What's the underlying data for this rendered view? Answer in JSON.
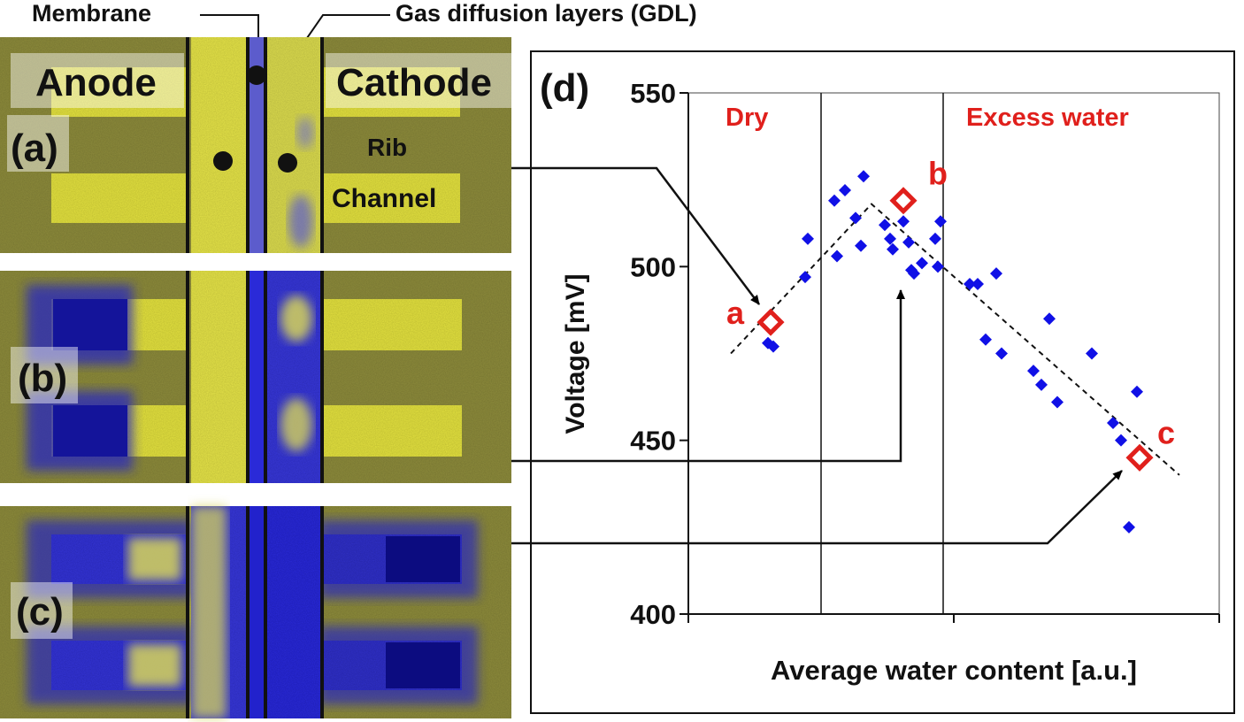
{
  "figure": {
    "top_labels": {
      "membrane": "Membrane",
      "gdl": "Gas diffusion layers (GDL)"
    },
    "panel_a": {
      "tag": "(a)",
      "anode": "Anode",
      "cathode": "Cathode",
      "rib": "Rib",
      "channel": "Channel"
    },
    "panel_b": {
      "tag": "(b)"
    },
    "panel_c": {
      "tag": "(c)"
    },
    "panel_d": {
      "tag": "(d)",
      "region_dry": "Dry",
      "region_excess": "Excess water",
      "point_a": "a",
      "point_b": "b",
      "point_c": "c"
    },
    "colors": {
      "water_blue": "#2a2ad8",
      "dry_yellow": "#e8e840",
      "background_olive": "#8c8c3a",
      "highlight_red": "#e0201c",
      "scatter_blue": "#1010e6"
    }
  },
  "chart_data": {
    "type": "scatter",
    "title": "",
    "xlabel": "Average water content [a.u.]",
    "ylabel": "Voltage [mV]",
    "ylim": [
      400,
      550
    ],
    "yticks": [
      400,
      450,
      500,
      550
    ],
    "xlim": [
      0,
      20
    ],
    "x_ticklabels_shown": false,
    "grid": false,
    "region_boundaries_x": [
      5,
      9.6
    ],
    "series": [
      {
        "points": [
          {
            "x": 3.0,
            "y": 478
          },
          {
            "x": 3.2,
            "y": 477
          },
          {
            "x": 4.4,
            "y": 497
          },
          {
            "x": 4.5,
            "y": 508
          },
          {
            "x": 5.5,
            "y": 519
          },
          {
            "x": 5.6,
            "y": 503
          },
          {
            "x": 5.9,
            "y": 522
          },
          {
            "x": 6.3,
            "y": 514
          },
          {
            "x": 6.5,
            "y": 506
          },
          {
            "x": 6.6,
            "y": 526
          },
          {
            "x": 7.4,
            "y": 512
          },
          {
            "x": 7.6,
            "y": 508
          },
          {
            "x": 7.7,
            "y": 505
          },
          {
            "x": 8.1,
            "y": 513
          },
          {
            "x": 8.3,
            "y": 507
          },
          {
            "x": 8.4,
            "y": 499
          },
          {
            "x": 8.5,
            "y": 498
          },
          {
            "x": 8.8,
            "y": 501
          },
          {
            "x": 9.3,
            "y": 508
          },
          {
            "x": 9.4,
            "y": 500
          },
          {
            "x": 9.5,
            "y": 513
          },
          {
            "x": 10.6,
            "y": 495
          },
          {
            "x": 10.9,
            "y": 495
          },
          {
            "x": 11.2,
            "y": 479
          },
          {
            "x": 11.6,
            "y": 498
          },
          {
            "x": 11.8,
            "y": 475
          },
          {
            "x": 13.0,
            "y": 470
          },
          {
            "x": 13.3,
            "y": 466
          },
          {
            "x": 13.6,
            "y": 485
          },
          {
            "x": 13.9,
            "y": 461
          },
          {
            "x": 15.2,
            "y": 475
          },
          {
            "x": 16.0,
            "y": 455
          },
          {
            "x": 16.3,
            "y": 450
          },
          {
            "x": 16.6,
            "y": 425
          },
          {
            "x": 16.9,
            "y": 464
          }
        ]
      }
    ],
    "highlighted_points": [
      {
        "label": "a",
        "x": 3.1,
        "y": 484
      },
      {
        "label": "b",
        "x": 8.1,
        "y": 519
      },
      {
        "label": "c",
        "x": 17.0,
        "y": 445
      }
    ],
    "trend_line": [
      {
        "x": 1.6,
        "y": 475
      },
      {
        "x": 6.9,
        "y": 518
      },
      {
        "x": 18.5,
        "y": 440
      }
    ]
  }
}
